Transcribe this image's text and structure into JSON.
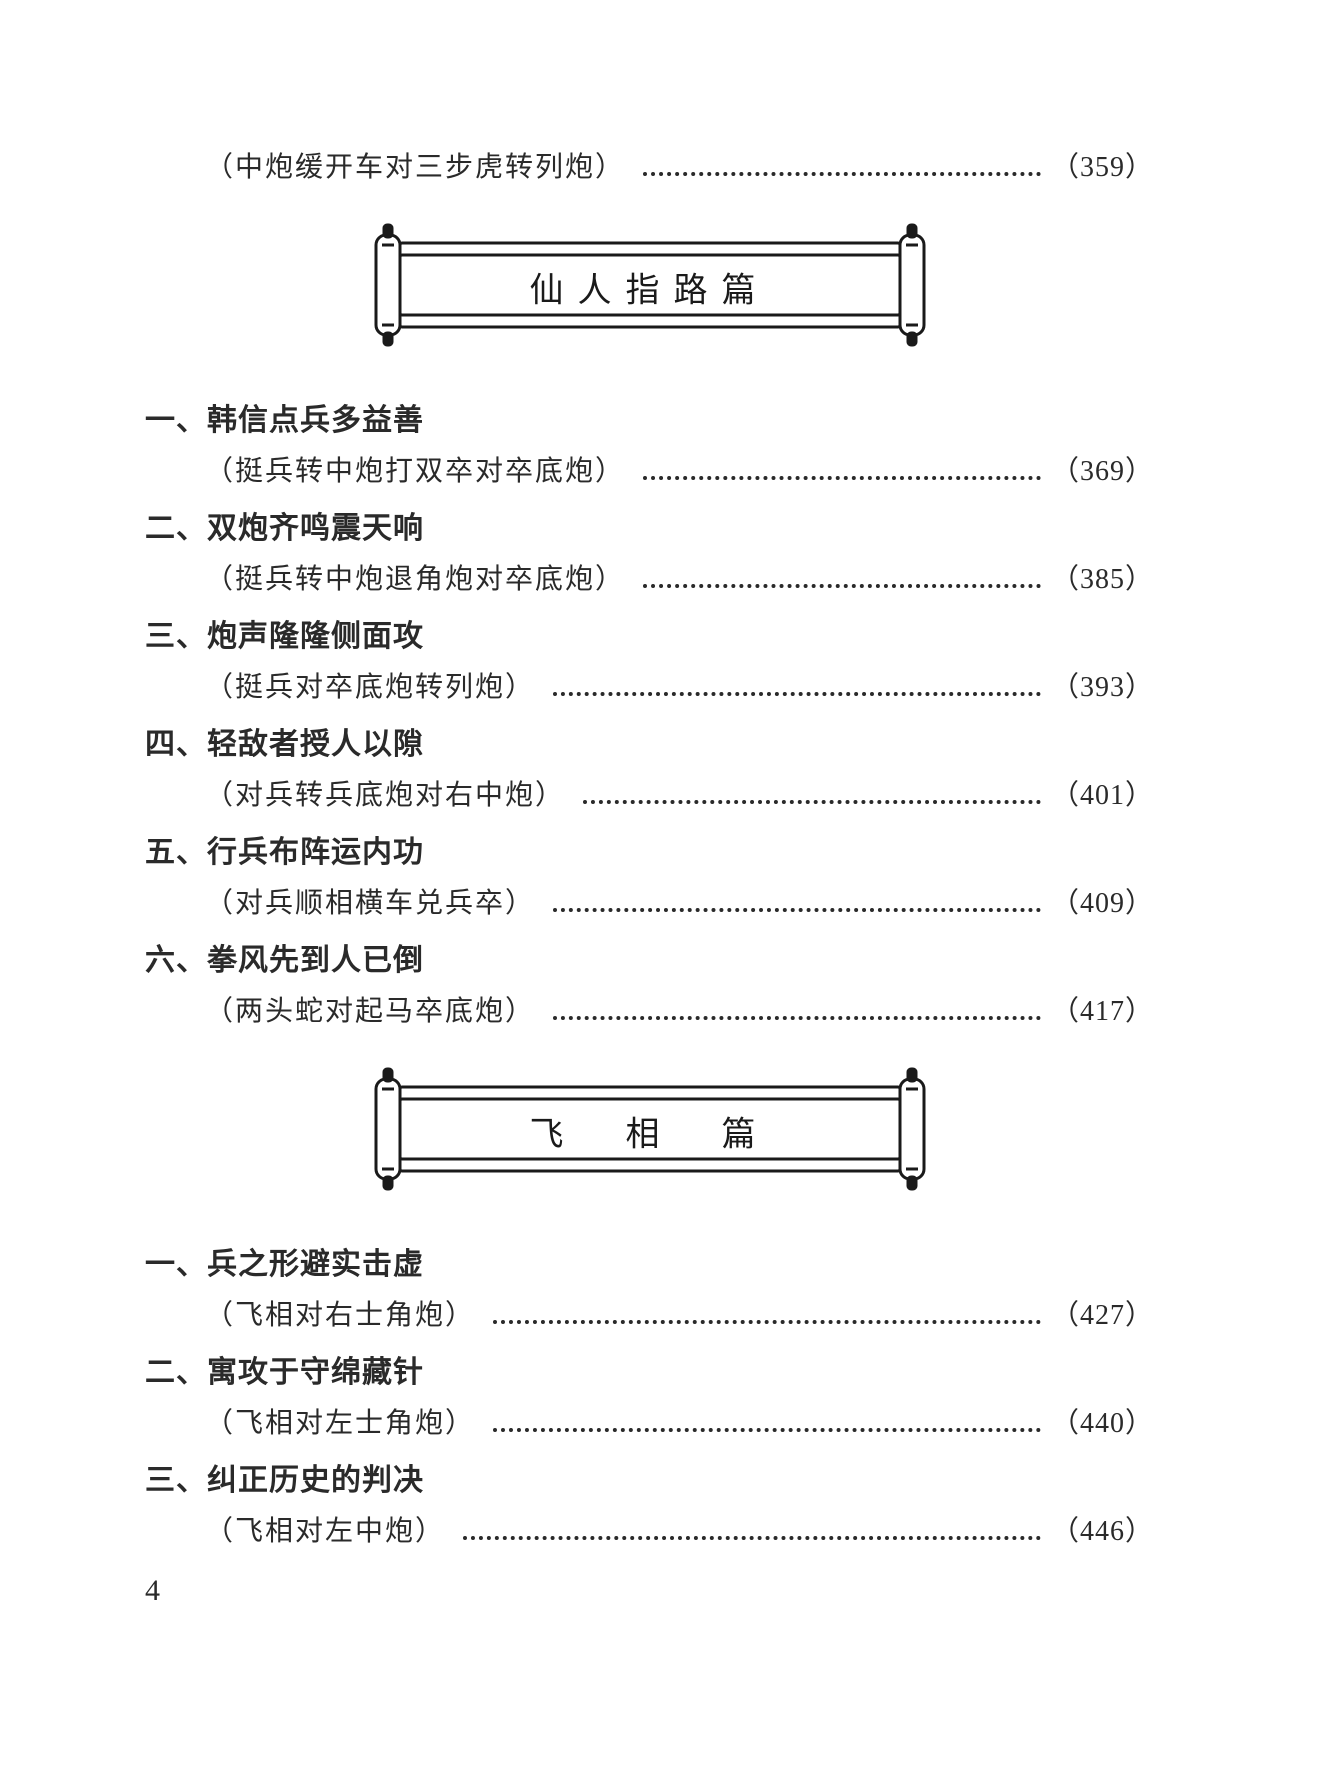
{
  "page_number": "4",
  "colors": {
    "text": "#2a2a2a",
    "background": "#ffffff",
    "stroke": "#1a1a1a"
  },
  "typography": {
    "body_family": "SimSun / Songti",
    "title_family": "KaiTi",
    "sub_fontsize_pt": 21,
    "title_fontsize_pt": 23,
    "banner_fontsize_pt": 26
  },
  "intro": {
    "subtitle": "（中炮缓开车对三步虎转列炮）",
    "page": "（359）"
  },
  "sections": [
    {
      "banner": "仙人指路篇",
      "entries": [
        {
          "num": "一、",
          "title": "韩信点兵多益善",
          "subtitle": "（挺兵转中炮打双卒对卒底炮）",
          "page": "（369）"
        },
        {
          "num": "二、",
          "title": "双炮齐鸣震天响",
          "subtitle": "（挺兵转中炮退角炮对卒底炮）",
          "page": "（385）"
        },
        {
          "num": "三、",
          "title": "炮声隆隆侧面攻",
          "subtitle": "（挺兵对卒底炮转列炮）",
          "page": "（393）"
        },
        {
          "num": "四、",
          "title": "轻敌者授人以隙",
          "subtitle": "（对兵转兵底炮对右中炮）",
          "page": "（401）"
        },
        {
          "num": "五、",
          "title": "行兵布阵运内功",
          "subtitle": "（对兵顺相横车兑兵卒）",
          "page": "（409）"
        },
        {
          "num": "六、",
          "title": "拳风先到人已倒",
          "subtitle": "（两头蛇对起马卒底炮）",
          "page": "（417）"
        }
      ]
    },
    {
      "banner": "飞　相　篇",
      "entries": [
        {
          "num": "一、",
          "title": "兵之形避实击虚",
          "subtitle": "（飞相对右士角炮）",
          "page": "（427）"
        },
        {
          "num": "二、",
          "title": "寓攻于守绵藏针",
          "subtitle": "（飞相对左士角炮）",
          "page": "（440）"
        },
        {
          "num": "三、",
          "title": "纠正历史的判决",
          "subtitle": "（飞相对左中炮）",
          "page": "（446）"
        }
      ]
    }
  ]
}
